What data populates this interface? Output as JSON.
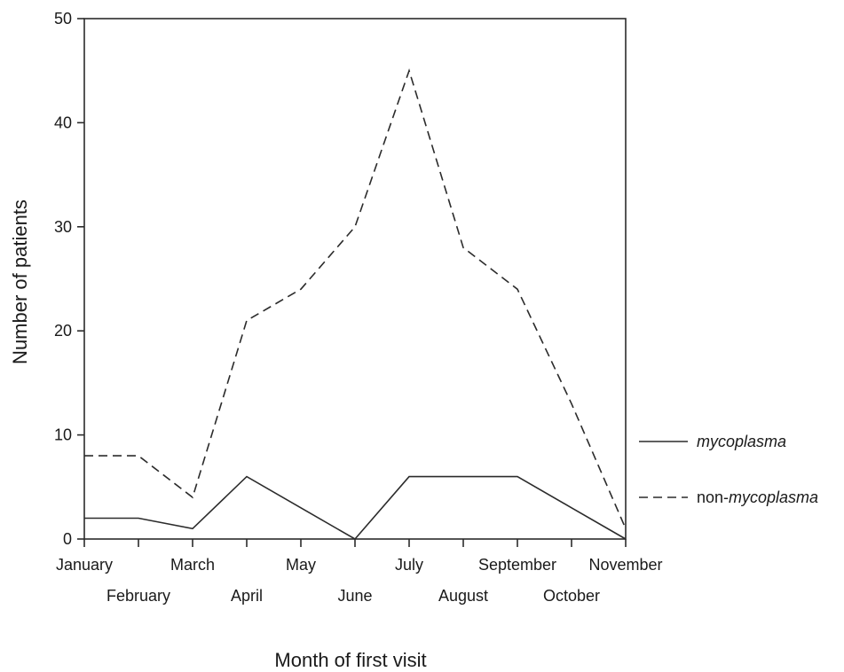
{
  "chart_data": {
    "type": "line",
    "xlabel": "Month of first visit",
    "ylabel": "Number of patients",
    "categories": [
      "January",
      "February",
      "March",
      "April",
      "May",
      "June",
      "July",
      "August",
      "September",
      "October",
      "November"
    ],
    "ylim": [
      0,
      50
    ],
    "yticks": [
      0,
      10,
      20,
      30,
      40,
      50
    ],
    "grid": false,
    "legend_position": "right",
    "series": [
      {
        "name": "mycoplasma",
        "legend_parts": [
          {
            "text": "mycoplasma",
            "italic": true
          }
        ],
        "style": "solid",
        "values": [
          2,
          2,
          1,
          6,
          3,
          0,
          6,
          6,
          6,
          3,
          0
        ]
      },
      {
        "name": "non-mycoplasma",
        "legend_parts": [
          {
            "text": "non-",
            "italic": false
          },
          {
            "text": "mycoplasma",
            "italic": true
          }
        ],
        "style": "dashed",
        "values": [
          8,
          8,
          4,
          21,
          24,
          30,
          45,
          28,
          24,
          13,
          1
        ]
      }
    ],
    "line_color": "#2b2b2b"
  }
}
